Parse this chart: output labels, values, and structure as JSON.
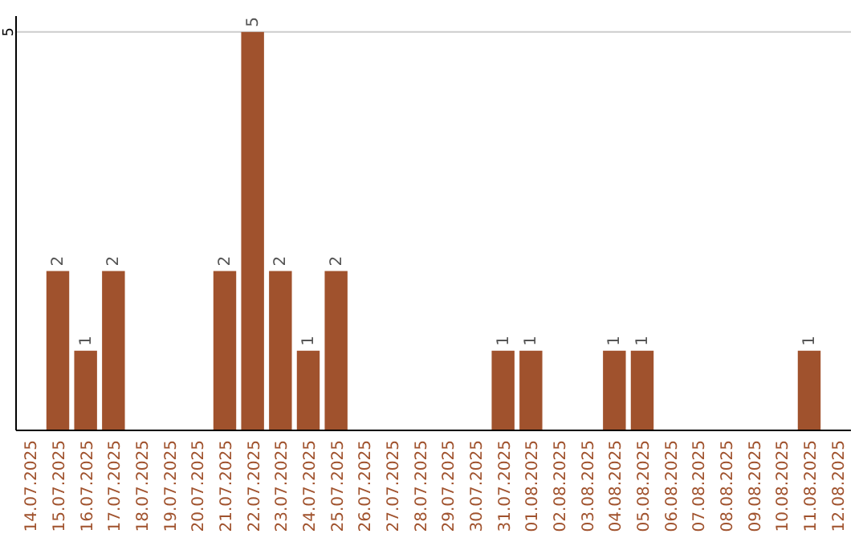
{
  "chart_data": {
    "type": "bar",
    "categories": [
      "14.07.2025",
      "15.07.2025",
      "16.07.2025",
      "17.07.2025",
      "18.07.2025",
      "19.07.2025",
      "20.07.2025",
      "21.07.2025",
      "22.07.2025",
      "23.07.2025",
      "24.07.2025",
      "25.07.2025",
      "26.07.2025",
      "27.07.2025",
      "28.07.2025",
      "29.07.2025",
      "30.07.2025",
      "31.07.2025",
      "01.08.2025",
      "02.08.2025",
      "03.08.2025",
      "04.08.2025",
      "05.08.2025",
      "06.08.2025",
      "07.08.2025",
      "08.08.2025",
      "09.08.2025",
      "10.08.2025",
      "11.08.2025",
      "12.08.2025"
    ],
    "values": [
      0,
      2,
      1,
      2,
      0,
      0,
      0,
      2,
      5,
      2,
      1,
      2,
      0,
      0,
      0,
      0,
      0,
      1,
      1,
      0,
      0,
      1,
      1,
      0,
      0,
      0,
      0,
      0,
      1,
      0
    ],
    "value_labels": [
      null,
      "2",
      "1",
      "2",
      null,
      null,
      null,
      "2",
      "5",
      "2",
      "1",
      "2",
      null,
      null,
      null,
      null,
      null,
      "1",
      "1",
      null,
      null,
      "1",
      "1",
      null,
      null,
      null,
      null,
      null,
      "1",
      null
    ],
    "color": "#a0522d",
    "ylim": [
      0,
      5.2
    ],
    "yticks": [
      5
    ],
    "grid": "y"
  }
}
